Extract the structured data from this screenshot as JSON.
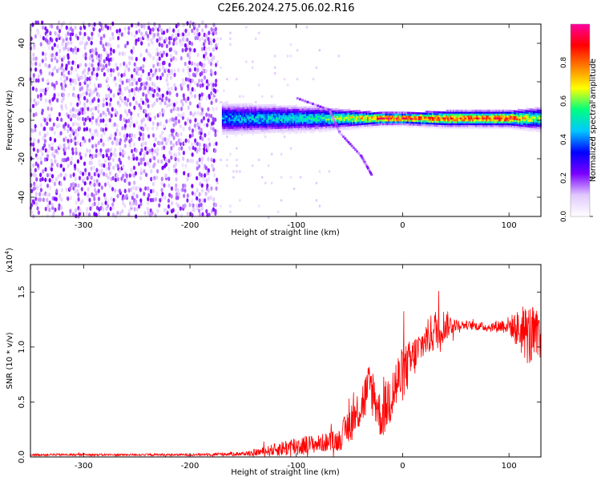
{
  "title": "C2E6.2024.275.06.02.R16",
  "chart_data": [
    {
      "type": "heatmap",
      "xlabel": "Height of straight line (km)",
      "ylabel": "Frequency (Hz)",
      "xlim": [
        -350,
        130
      ],
      "ylim": [
        -50,
        50
      ],
      "xticks": [
        -300,
        -200,
        -100,
        0,
        100
      ],
      "yticks": [
        -40,
        -20,
        0,
        20,
        40
      ],
      "colorbar": {
        "label": "Normalized spectral amplitude",
        "range": [
          0,
          1
        ],
        "ticks": [
          "0.0",
          "0.2",
          "0.4",
          "0.6",
          "0.8"
        ],
        "ticks_values": [
          0,
          0.2,
          0.4,
          0.6,
          0.8
        ],
        "colormap": [
          "#ffffff",
          "#e0c8ff",
          "#7a00ff",
          "#0000ff",
          "#00c8ff",
          "#00ff80",
          "#ffff00",
          "#ff8000",
          "#ff0000",
          "#ff00a0"
        ]
      },
      "description_values": {
        "noise_region_x": [
          -350,
          -175
        ],
        "sparse_region_x": [
          -175,
          -160
        ],
        "signal_band_center_hz": 1,
        "signal_band": [
          {
            "x": -165,
            "halfwidth_hz": 7,
            "peak": 0.45
          },
          {
            "x": -120,
            "halfwidth_hz": 6,
            "peak": 0.5
          },
          {
            "x": -80,
            "halfwidth_hz": 5,
            "peak": 0.55
          },
          {
            "x": -40,
            "halfwidth_hz": 3,
            "peak": 0.75
          },
          {
            "x": -20,
            "halfwidth_hz": 2,
            "peak": 0.95
          },
          {
            "x": 0,
            "halfwidth_hz": 2,
            "peak": 0.9
          },
          {
            "x": 40,
            "halfwidth_hz": 3,
            "peak": 0.85
          },
          {
            "x": 100,
            "halfwidth_hz": 3,
            "peak": 0.9
          },
          {
            "x": 130,
            "halfwidth_hz": 5,
            "peak": 0.6
          }
        ],
        "diagonal_feature": [
          [
            -100,
            12
          ],
          [
            -70,
            6
          ],
          [
            -60,
            -6
          ],
          [
            -40,
            -18
          ],
          [
            -30,
            -28
          ]
        ]
      }
    },
    {
      "type": "line",
      "xlabel": "Height of straight line (km)",
      "ylabel": "SNR (10 * v/v)",
      "yscale_label": "(x10",
      "yscale_exponent": "4",
      "yscale_suffix": ")",
      "xlim": [
        -350,
        130
      ],
      "ylim": [
        0,
        1.75
      ],
      "xticks": [
        -300,
        -200,
        -100,
        0,
        100
      ],
      "yticks": [
        "0.0",
        "0.5",
        "1.0",
        "1.5"
      ],
      "yticks_values": [
        0,
        0.5,
        1.0,
        1.5
      ],
      "series_color": "#ff0000",
      "envelope": {
        "x": [
          -350,
          -200,
          -150,
          -130,
          -100,
          -80,
          -60,
          -50,
          -40,
          -30,
          -20,
          -10,
          0,
          10,
          20,
          30,
          40,
          50,
          60,
          80,
          100,
          110,
          120,
          130
        ],
        "mid": [
          0.02,
          0.02,
          0.03,
          0.05,
          0.1,
          0.12,
          0.15,
          0.3,
          0.45,
          0.65,
          0.35,
          0.6,
          0.75,
          0.9,
          1.05,
          1.15,
          1.2,
          1.2,
          1.2,
          1.18,
          1.2,
          1.15,
          1.1,
          1.05
        ],
        "amp": [
          0.01,
          0.01,
          0.02,
          0.04,
          0.1,
          0.08,
          0.1,
          0.18,
          0.2,
          0.25,
          0.2,
          0.3,
          0.25,
          0.2,
          0.15,
          0.2,
          0.15,
          0.05,
          0.04,
          0.04,
          0.08,
          0.2,
          0.3,
          0.25
        ]
      }
    }
  ]
}
